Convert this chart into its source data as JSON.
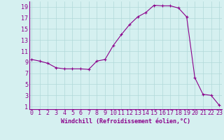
{
  "x": [
    0,
    1,
    2,
    3,
    4,
    5,
    6,
    7,
    8,
    9,
    10,
    11,
    12,
    13,
    14,
    15,
    16,
    17,
    18,
    19,
    20,
    21,
    22,
    23
  ],
  "y": [
    9.5,
    9.2,
    8.8,
    8.0,
    7.8,
    7.8,
    7.8,
    7.7,
    9.2,
    9.5,
    12.0,
    14.0,
    15.8,
    17.2,
    18.0,
    19.3,
    19.2,
    19.2,
    18.8,
    17.2,
    6.2,
    3.2,
    3.0,
    1.2
  ],
  "line_color": "#8b008b",
  "marker": "+",
  "marker_size": 3,
  "background_color": "#d5f0f0",
  "grid_color": "#b0d8d8",
  "xlabel": "Windchill (Refroidissement éolien,°C)",
  "xlabel_color": "#8b008b",
  "ylabel_ticks": [
    1,
    3,
    5,
    7,
    9,
    11,
    13,
    15,
    17,
    19
  ],
  "xtick_labels": [
    "0",
    "1",
    "2",
    "3",
    "4",
    "5",
    "6",
    "7",
    "8",
    "9",
    "10",
    "11",
    "12",
    "13",
    "14",
    "15",
    "16",
    "17",
    "18",
    "19",
    "20",
    "21",
    "22",
    "23"
  ],
  "ylim": [
    0.5,
    20
  ],
  "xlim": [
    -0.3,
    23.3
  ],
  "tick_fontsize": 6,
  "xlabel_fontsize": 6
}
